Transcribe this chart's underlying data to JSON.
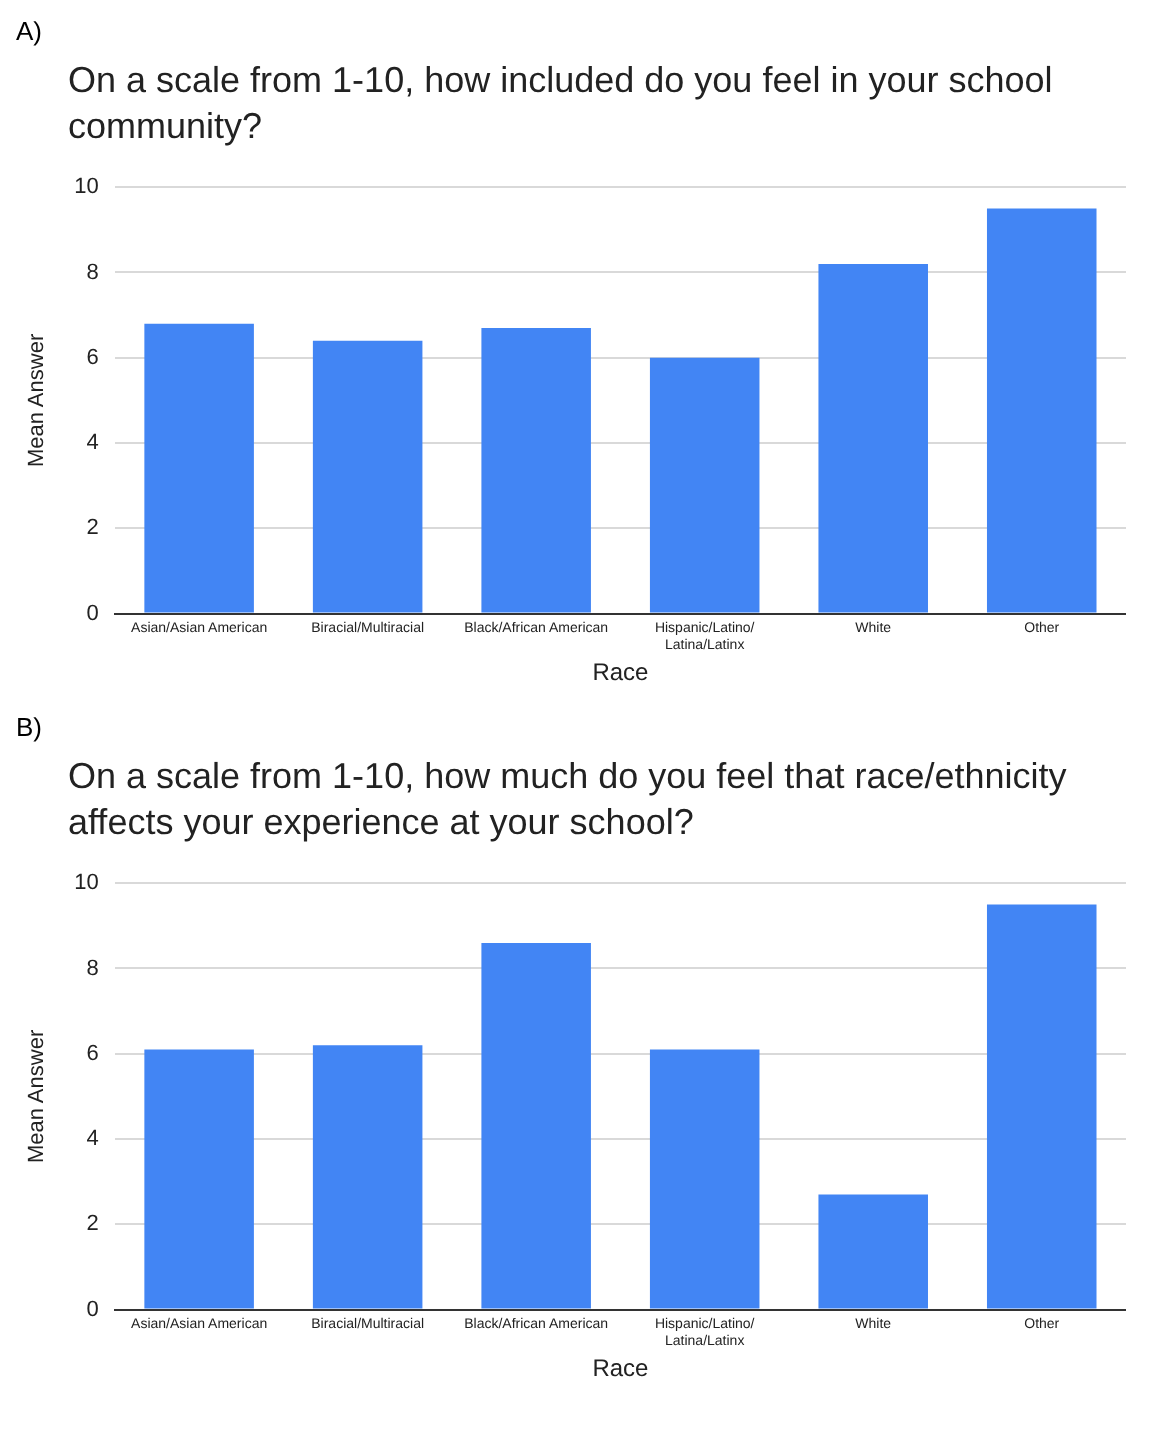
{
  "chart_data": [
    {
      "type": "bar",
      "annotations": [
        "A)"
      ],
      "title": "On a scale from 1-10, how included do you feel in your school community?",
      "xlabel": "Race",
      "ylabel": "Mean Answer",
      "categories": [
        "Asian/Asian American",
        "Biracial/Multiracial",
        "Black/African American",
        "Hispanic/Latino/Latina/Latinx",
        "White",
        "Other"
      ],
      "values": [
        6.8,
        6.4,
        6.7,
        6.0,
        8.2,
        9.5
      ],
      "color": "#4285f4",
      "ylim": [
        0,
        10
      ],
      "yticks": [
        0,
        2,
        4,
        6,
        8,
        10
      ],
      "grid": "y"
    },
    {
      "type": "bar",
      "annotations": [
        "B)"
      ],
      "title": "On a scale from 1-10, how much do you feel that race/ethnicity affects your experience at your school?",
      "xlabel": "Race",
      "ylabel": "Mean Answer",
      "categories": [
        "Asian/Asian American",
        "Biracial/Multiracial",
        "Black/African American",
        "Hispanic/Latino/Latina/Latinx",
        "White",
        "Other"
      ],
      "values": [
        6.1,
        6.2,
        8.6,
        6.1,
        2.7,
        9.5
      ],
      "color": "#4285f4",
      "ylim": [
        0,
        10
      ],
      "yticks": [
        0,
        2,
        4,
        6,
        8,
        10
      ],
      "grid": "y"
    }
  ]
}
